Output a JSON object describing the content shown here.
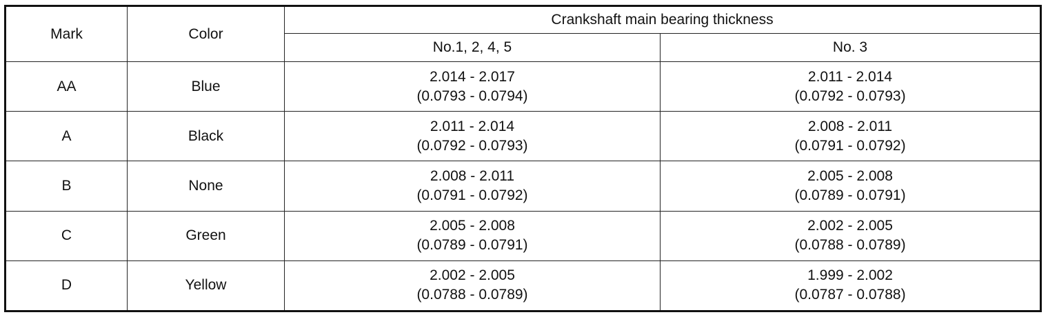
{
  "headers": {
    "mark": "Mark",
    "color": "Color",
    "group": "Crankshaft main bearing thickness",
    "col_a": "No.1, 2, 4, 5",
    "col_b": "No. 3"
  },
  "rows": [
    {
      "mark": "AA",
      "color": "Blue",
      "a_mm": "2.014 - 2.017",
      "a_in": "(0.0793 - 0.0794)",
      "b_mm": "2.011 - 2.014",
      "b_in": "(0.0792 - 0.0793)"
    },
    {
      "mark": "A",
      "color": "Black",
      "a_mm": "2.011 - 2.014",
      "a_in": "(0.0792 - 0.0793)",
      "b_mm": "2.008 - 2.011",
      "b_in": "(0.0791 - 0.0792)"
    },
    {
      "mark": "B",
      "color": "None",
      "a_mm": "2.008 - 2.011",
      "a_in": "(0.0791 - 0.0792)",
      "b_mm": "2.005 - 2.008",
      "b_in": "(0.0789 - 0.0791)"
    },
    {
      "mark": "C",
      "color": "Green",
      "a_mm": "2.005 - 2.008",
      "a_in": "(0.0789 - 0.0791)",
      "b_mm": "2.002 - 2.005",
      "b_in": "(0.0788 - 0.0789)"
    },
    {
      "mark": "D",
      "color": "Yellow",
      "a_mm": "2.002 - 2.005",
      "a_in": "(0.0788 - 0.0789)",
      "b_mm": "1.999 - 2.002",
      "b_in": "(0.0787 - 0.0788)"
    }
  ]
}
